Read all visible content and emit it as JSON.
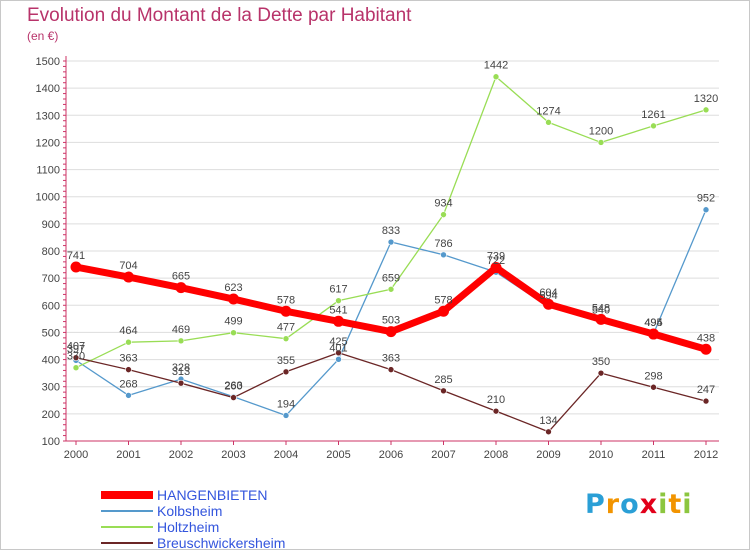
{
  "title": "Evolution du Montant de la Dette par Habitant",
  "subtitle": "(en €)",
  "colors": {
    "title": "#b8336a",
    "axis": "#cc3366",
    "grid": "#dddddd",
    "legend_text": "#3355dd",
    "hangenbieten": "#ff0000",
    "kolbsheim": "#5599cc",
    "holtzheim": "#99dd55",
    "breuschwickersheim": "#6b2626"
  },
  "logo": {
    "letters": [
      "P",
      "r",
      "o",
      "x",
      "i",
      "t",
      "i"
    ],
    "colors": [
      "#2a9fd6",
      "#f29400",
      "#2a9fd6",
      "#e2001a",
      "#8cc63f",
      "#f29400",
      "#8cc63f"
    ]
  },
  "chart_data": {
    "type": "line",
    "x": [
      "2000",
      "2001",
      "2002",
      "2003",
      "2004",
      "2005",
      "2006",
      "2007",
      "2008",
      "2009",
      "2010",
      "2011",
      "2012"
    ],
    "ylim": [
      100,
      1500
    ],
    "yticks": [
      100,
      200,
      300,
      400,
      500,
      600,
      700,
      800,
      900,
      1000,
      1100,
      1200,
      1300,
      1400,
      1500
    ],
    "grid": "horizontal",
    "legend_position": "bottom-left",
    "series": [
      {
        "name": "HANGENBIETEN",
        "color": "#ff0000",
        "thick": true,
        "values": [
          741,
          704,
          665,
          623,
          578,
          541,
          503,
          578,
          739,
          604,
          548,
          494,
          438
        ]
      },
      {
        "name": "Kolbsheim",
        "color": "#5599cc",
        "thick": false,
        "values": [
          397,
          268,
          328,
          263,
          194,
          401,
          833,
          786,
          722,
          594,
          540,
          495,
          952
        ]
      },
      {
        "name": "Holtzheim",
        "color": "#99dd55",
        "thick": false,
        "values": [
          370,
          464,
          469,
          499,
          477,
          617,
          659,
          934,
          1442,
          1274,
          1200,
          1261,
          1320
        ]
      },
      {
        "name": "Breuschwickersheim",
        "color": "#6b2626",
        "thick": false,
        "values": [
          407,
          363,
          313,
          260,
          355,
          425,
          363,
          285,
          210,
          134,
          350,
          298,
          247
        ]
      }
    ]
  }
}
